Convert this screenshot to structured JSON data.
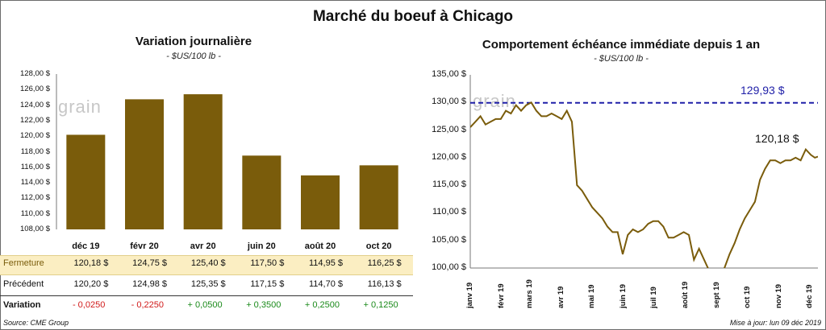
{
  "title": "Marché du boeuf à Chicago",
  "left": {
    "title": "Variation journalière",
    "unit": "- $US/100 lb -",
    "y_ticks": [
      "128,00 $",
      "126,00 $",
      "124,00 $",
      "122,00 $",
      "120,00 $",
      "118,00 $",
      "116,00 $",
      "114,00 $",
      "112,00 $",
      "110,00 $",
      "108,00 $"
    ],
    "table": {
      "row1_label": "Fermeture",
      "row2_label": "Précédent",
      "row3_label": "Variation",
      "fermeture": [
        "120,18  $",
        "124,75  $",
        "125,40  $",
        "117,50  $",
        "114,95  $",
        "116,25  $"
      ],
      "precedent": [
        "120,20  $",
        "124,98  $",
        "125,35  $",
        "117,15  $",
        "114,70  $",
        "116,13  $"
      ],
      "variation": [
        "- 0,0250",
        "- 0,2250",
        "+ 0,0500",
        "+ 0,3500",
        "+ 0,2500",
        "+ 0,1250"
      ]
    }
  },
  "right": {
    "title": "Comportement  échéance immédiate depuis 1 an",
    "unit": "- $US/100 lb -",
    "y_ticks": [
      "135,00 $",
      "130,00 $",
      "125,00 $",
      "120,00 $",
      "115,00 $",
      "110,00 $",
      "105,00 $",
      "100,00 $"
    ],
    "x_labels": [
      "janv 19",
      "févr 19",
      "mars 19",
      "avr 19",
      "mai 19",
      "juin 19",
      "juil 19",
      "août 19",
      "sept 19",
      "oct 19",
      "nov 19",
      "déc 19"
    ],
    "max_label": "129,93 $",
    "last_label": "120,18 $"
  },
  "source": "Source: CME Group",
  "updated": "Mise à jour: lun 09 déc 2019",
  "watermark": "grain",
  "colors": {
    "bar": "#7a5c0b",
    "line": "#7a5c0b",
    "ref_line": "#1f1fa8",
    "band": "#fbeec2",
    "neg": "#d11a1a",
    "pos": "#1a8a1a"
  },
  "chart_data": [
    {
      "type": "bar",
      "title": "Variation journalière",
      "categories": [
        "déc 19",
        "févr 20",
        "avr 20",
        "juin 20",
        "août 20",
        "oct 20"
      ],
      "values": [
        120.18,
        124.75,
        125.4,
        117.5,
        114.95,
        116.25
      ],
      "ylim": [
        108,
        128
      ],
      "grid": false
    },
    {
      "type": "line",
      "title": "Comportement  échéance immédiate depuis 1 an",
      "ylim": [
        100,
        135
      ],
      "x_range": [
        "2019-01-01",
        "2019-12-09"
      ],
      "reference_line": 129.93,
      "series": [
        {
          "x": [
            "2019-01-01",
            "2019-01-06",
            "2019-01-11",
            "2019-01-16",
            "2019-01-21",
            "2019-01-26",
            "2019-01-31",
            "2019-02-05",
            "2019-02-10",
            "2019-02-15",
            "2019-02-20",
            "2019-02-25",
            "2019-03-02",
            "2019-03-07",
            "2019-03-12",
            "2019-03-17",
            "2019-03-22",
            "2019-03-27",
            "2019-04-01",
            "2019-04-06",
            "2019-04-11",
            "2019-04-16",
            "2019-04-21",
            "2019-04-26",
            "2019-05-01",
            "2019-05-06",
            "2019-05-11",
            "2019-05-16",
            "2019-05-21",
            "2019-05-26",
            "2019-05-31",
            "2019-06-05",
            "2019-06-10",
            "2019-06-15",
            "2019-06-20",
            "2019-06-25",
            "2019-06-30",
            "2019-07-05",
            "2019-07-10",
            "2019-07-15",
            "2019-07-20",
            "2019-07-25",
            "2019-07-30",
            "2019-08-04",
            "2019-08-09",
            "2019-08-14",
            "2019-08-19",
            "2019-08-24",
            "2019-08-29",
            "2019-09-03",
            "2019-09-08",
            "2019-09-13",
            "2019-09-18",
            "2019-09-23",
            "2019-09-28",
            "2019-10-03",
            "2019-10-08",
            "2019-10-13",
            "2019-10-18",
            "2019-10-23",
            "2019-10-28",
            "2019-11-02",
            "2019-11-07",
            "2019-11-12",
            "2019-11-17",
            "2019-11-22",
            "2019-11-27",
            "2019-12-02",
            "2019-12-06",
            "2019-12-09"
          ],
          "values": [
            125.5,
            126.5,
            127.5,
            126.0,
            126.5,
            127.0,
            127.0,
            128.5,
            128.0,
            129.5,
            128.5,
            129.5,
            130.0,
            128.5,
            127.5,
            127.5,
            128.0,
            127.5,
            127.0,
            128.5,
            126.5,
            115.0,
            114.0,
            112.5,
            111.0,
            110.0,
            109.0,
            107.5,
            106.5,
            106.5,
            102.5,
            106.0,
            107.0,
            106.5,
            107.0,
            108.0,
            108.5,
            108.5,
            107.5,
            105.5,
            105.5,
            106.0,
            106.5,
            106.0,
            101.5,
            103.5,
            101.5,
            99.5,
            98.5,
            99.0,
            100.0,
            102.5,
            104.5,
            107.0,
            109.0,
            110.5,
            112.0,
            116.0,
            118.0,
            119.5,
            119.5,
            119.0,
            119.5,
            119.5,
            120.0,
            119.5,
            121.5,
            120.5,
            120.0,
            120.18
          ]
        }
      ]
    }
  ]
}
